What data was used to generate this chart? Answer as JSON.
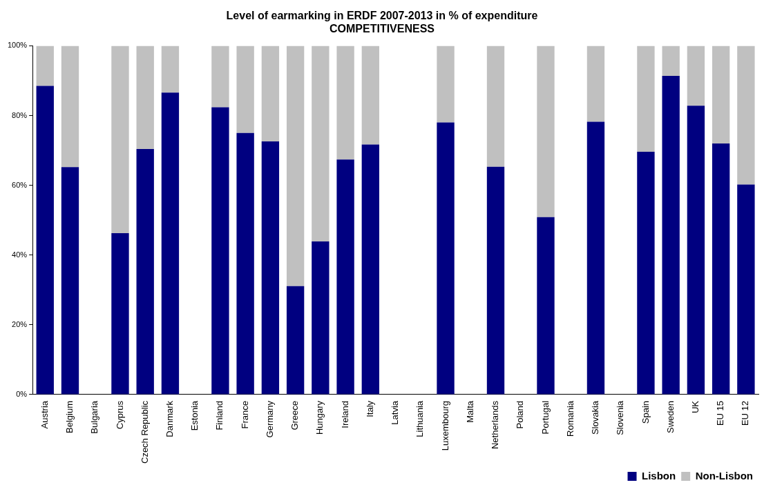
{
  "chart_data": {
    "type": "bar",
    "title": "Level of earmarking in ERDF 2007-2013 in % of expenditure\nCOMPETITIVENESS",
    "stacked": true,
    "categories": [
      "Austria",
      "Belgium",
      "Bulgaria",
      "Cyprus",
      "Czech Republic",
      "Danmark",
      "Estonia",
      "Finland",
      "France",
      "Germany",
      "Greece",
      "Hungary",
      "Ireland",
      "Italy",
      "Latvia",
      "Lithuania",
      "Luxembourg",
      "Malta",
      "Netherlands",
      "Poland",
      "Portugal",
      "Romania",
      "Slovakia",
      "Slovenia",
      "Spain",
      "Sweden",
      "UK",
      "EU 15",
      "EU 12"
    ],
    "series": [
      {
        "name": "Lisbon",
        "color": "#000080",
        "values": [
          88.5,
          65.2,
          null,
          46.3,
          70.4,
          86.6,
          null,
          82.4,
          75.0,
          72.6,
          31.1,
          43.9,
          67.4,
          71.7,
          null,
          null,
          78.0,
          null,
          65.3,
          null,
          50.9,
          null,
          78.2,
          null,
          69.6,
          91.4,
          82.8,
          72.0,
          60.2
        ]
      },
      {
        "name": "Non-Lisbon",
        "color": "#c0c0c0",
        "values": [
          11.5,
          34.8,
          null,
          53.7,
          29.6,
          13.4,
          null,
          17.6,
          25.0,
          27.4,
          68.9,
          56.1,
          32.6,
          28.3,
          null,
          null,
          22.0,
          null,
          34.7,
          null,
          49.1,
          null,
          21.8,
          null,
          30.4,
          8.6,
          17.2,
          28.0,
          39.8
        ]
      }
    ],
    "ylim": [
      0,
      100
    ],
    "yticks": [
      {
        "value": 0,
        "label": "0%"
      },
      {
        "value": 20,
        "label": "20%"
      },
      {
        "value": 40,
        "label": "40%"
      },
      {
        "value": 60,
        "label": "60%"
      },
      {
        "value": 80,
        "label": "80%"
      },
      {
        "value": 100,
        "label": "100%"
      }
    ],
    "grid": false,
    "legend": "bottom right"
  }
}
